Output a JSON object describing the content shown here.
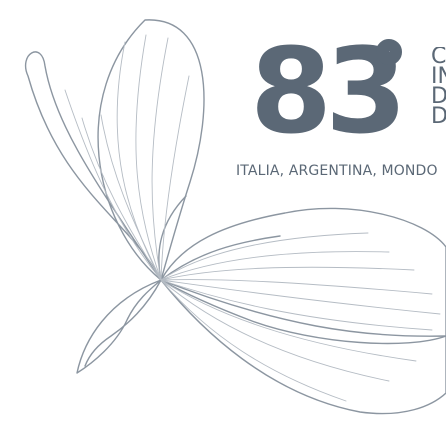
{
  "brand": {
    "number": "83",
    "accent_color": "#5b6876",
    "line_color": "#8c96a1"
  },
  "title_letters": [
    "CO",
    "IN",
    "DI",
    "DA"
  ],
  "tagline": "ITALIA, ARGENTINA, MONDO",
  "icons": {
    "flower": "flower-line-art-icon",
    "degree": "degree-symbol-icon"
  }
}
